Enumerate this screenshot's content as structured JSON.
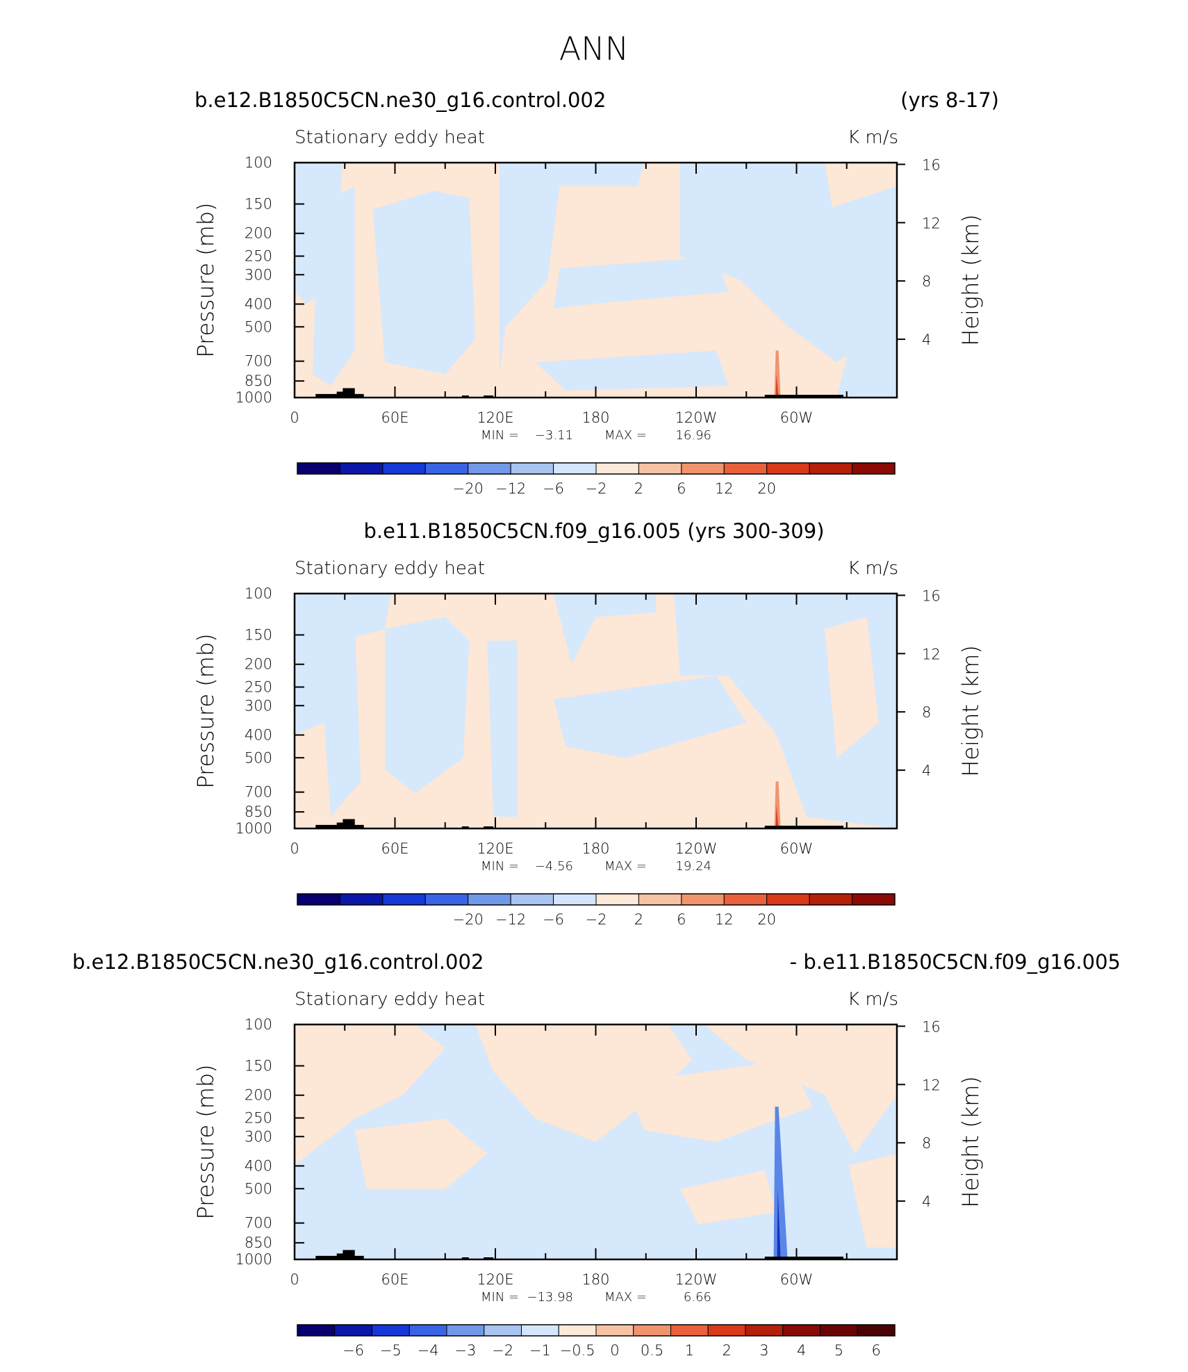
{
  "page": {
    "title": "ANN"
  },
  "chart_data": [
    {
      "type": "heatmap",
      "case_label": "b.e12.B1850C5CN.ne30_g16.control.002",
      "years_label": "(yrs 8-17)",
      "title": "Stationary eddy heat",
      "units": "K m/s",
      "ylabel": "Pressure (mb)",
      "y2label": "Height (km)",
      "ylim": [
        1000,
        100
      ],
      "y_ticks": [
        "100",
        "150",
        "200",
        "250",
        "300",
        "400",
        "500",
        "700",
        "850",
        "1000"
      ],
      "y2_ticks": [
        "4",
        "8",
        "12",
        "16"
      ],
      "x_ticks": [
        "0",
        "60E",
        "120E",
        "180",
        "120W",
        "60W"
      ],
      "min_label": "MIN =",
      "min_value": "−3.11",
      "max_label": "MAX =",
      "max_value": "16.96",
      "colorbar_labels": [
        "−20",
        "−12",
        "−6",
        "−2",
        "2",
        "6",
        "12",
        "20"
      ]
    },
    {
      "type": "heatmap",
      "case_label": "b.e11.B1850C5CN.f09_g16.005 (yrs 300-309)",
      "title": "Stationary eddy heat",
      "units": "K m/s",
      "ylabel": "Pressure (mb)",
      "y2label": "Height (km)",
      "ylim": [
        1000,
        100
      ],
      "y_ticks": [
        "100",
        "150",
        "200",
        "250",
        "300",
        "400",
        "500",
        "700",
        "850",
        "1000"
      ],
      "y2_ticks": [
        "4",
        "8",
        "12",
        "16"
      ],
      "x_ticks": [
        "0",
        "60E",
        "120E",
        "180",
        "120W",
        "60W"
      ],
      "min_label": "MIN =",
      "min_value": "−4.56",
      "max_label": "MAX =",
      "max_value": "19.24",
      "colorbar_labels": [
        "−20",
        "−12",
        "−6",
        "−2",
        "2",
        "6",
        "12",
        "20"
      ]
    },
    {
      "type": "heatmap",
      "case_label": "b.e12.B1850C5CN.ne30_g16.control.002",
      "case_label_right": "- b.e11.B1850C5CN.f09_g16.005",
      "title": "Stationary eddy heat",
      "units": "K m/s",
      "ylabel": "Pressure (mb)",
      "y2label": "Height (km)",
      "ylim": [
        1000,
        100
      ],
      "y_ticks": [
        "100",
        "150",
        "200",
        "250",
        "300",
        "400",
        "500",
        "700",
        "850",
        "1000"
      ],
      "y2_ticks": [
        "4",
        "8",
        "12",
        "16"
      ],
      "x_ticks": [
        "0",
        "60E",
        "120E",
        "180",
        "120W",
        "60W"
      ],
      "min_label": "MIN =",
      "min_value": "−13.98",
      "max_label": "MAX =",
      "max_value": "6.66",
      "colorbar_labels": [
        "−6",
        "−5",
        "−4",
        "−3",
        "−2",
        "−1",
        "−0.5",
        "0",
        "0.5",
        "1",
        "2",
        "3",
        "4",
        "5",
        "6"
      ]
    }
  ],
  "colors": {
    "positive_fill": "#fde7d6",
    "negative_fill": "#d6e8fb",
    "scale_16": [
      "#08006e",
      "#0a17a8",
      "#1638d8",
      "#3a64e6",
      "#7298ea",
      "#a8c4f0",
      "#d4e6fb",
      "#fde9d8",
      "#f6c3a4",
      "#f0946e",
      "#e8603c",
      "#d83a1a",
      "#b42008",
      "#8a0a06"
    ],
    "scale_diff": [
      "#08006e",
      "#0a17a8",
      "#1638d8",
      "#3a64e6",
      "#7298ea",
      "#a8c4f0",
      "#d4e6fb",
      "#fde9d8",
      "#f6c3a4",
      "#f0946e",
      "#e8603c",
      "#d83a1a",
      "#b42008",
      "#8a0a06",
      "#6a0404",
      "#4a0202"
    ]
  }
}
